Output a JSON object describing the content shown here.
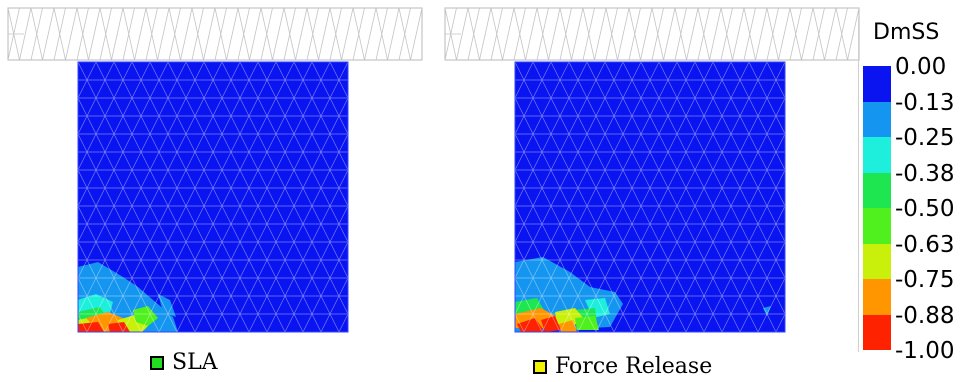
{
  "panels": [
    {
      "caption": "SLA",
      "swatch_color": "#22dd22"
    },
    {
      "caption": "Force Release",
      "swatch_color": "#f2f200"
    }
  ],
  "legend": {
    "title": "DmSS",
    "ticks": [
      "0.00",
      "-0.13",
      "-0.25",
      "-0.38",
      "-0.50",
      "-0.63",
      "-0.75",
      "-0.88",
      "-1.00"
    ],
    "colors": [
      "#0a14f0",
      "#1496f0",
      "#1eeedc",
      "#1ee650",
      "#50f01e",
      "#c8f00a",
      "#ff9600",
      "#ff2200"
    ]
  }
}
